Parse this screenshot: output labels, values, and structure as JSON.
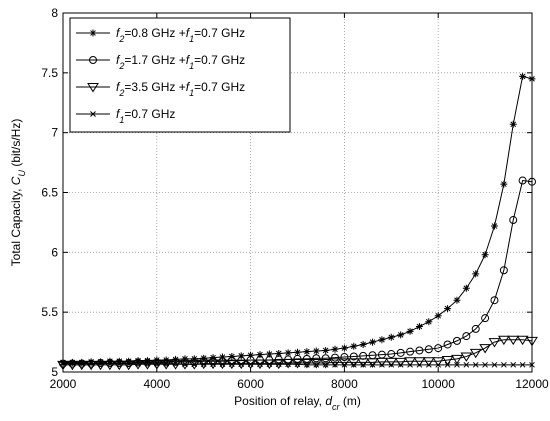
{
  "chart_data": {
    "type": "line",
    "xlabel": "Position of relay, dcr (m)",
    "ylabel": "Total Capacity, CU (bit/s/Hz)",
    "x": [
      2000,
      2200,
      2400,
      2600,
      2800,
      3000,
      3200,
      3400,
      3600,
      3800,
      4000,
      4200,
      4400,
      4600,
      4800,
      5000,
      5200,
      5400,
      5600,
      5800,
      6000,
      6200,
      6400,
      6600,
      6800,
      7000,
      7200,
      7400,
      7600,
      7800,
      8000,
      8200,
      8400,
      8600,
      8800,
      9000,
      9200,
      9400,
      9600,
      9800,
      10000,
      10200,
      10400,
      10600,
      10800,
      11000,
      11200,
      11400,
      11600,
      11800,
      12000
    ],
    "series": [
      {
        "name": "f2=0.8 GHz +f1=0.7 GHz",
        "color": "#000000",
        "marker": "asterisk",
        "values": [
          5.08,
          5.08,
          5.08,
          5.085,
          5.085,
          5.09,
          5.09,
          5.09,
          5.095,
          5.095,
          5.1,
          5.1,
          5.105,
          5.11,
          5.11,
          5.115,
          5.12,
          5.125,
          5.13,
          5.135,
          5.14,
          5.145,
          5.15,
          5.155,
          5.16,
          5.165,
          5.17,
          5.175,
          5.18,
          5.19,
          5.2,
          5.215,
          5.23,
          5.25,
          5.27,
          5.29,
          5.31,
          5.34,
          5.38,
          5.42,
          5.47,
          5.53,
          5.6,
          5.7,
          5.82,
          5.98,
          6.22,
          6.57,
          7.07,
          7.47,
          7.45
        ]
      },
      {
        "name": "f2=1.7 GHz +f1=0.7 GHz",
        "color": "#000000",
        "marker": "circle",
        "values": [
          5.07,
          5.07,
          5.07,
          5.07,
          5.075,
          5.075,
          5.075,
          5.075,
          5.08,
          5.08,
          5.08,
          5.08,
          5.085,
          5.085,
          5.085,
          5.09,
          5.09,
          5.09,
          5.095,
          5.095,
          5.1,
          5.1,
          5.1,
          5.105,
          5.105,
          5.11,
          5.11,
          5.115,
          5.115,
          5.12,
          5.125,
          5.13,
          5.135,
          5.14,
          5.145,
          5.15,
          5.16,
          5.17,
          5.18,
          5.19,
          5.2,
          5.23,
          5.26,
          5.3,
          5.36,
          5.45,
          5.6,
          5.85,
          6.27,
          6.6,
          6.59
        ]
      },
      {
        "name": "f2=3.5 GHz +f1=0.7 GHz",
        "color": "#000000",
        "marker": "triangle-down",
        "values": [
          5.06,
          5.06,
          5.06,
          5.06,
          5.06,
          5.06,
          5.06,
          5.06,
          5.065,
          5.065,
          5.065,
          5.065,
          5.065,
          5.065,
          5.065,
          5.07,
          5.07,
          5.07,
          5.07,
          5.07,
          5.07,
          5.07,
          5.07,
          5.07,
          5.075,
          5.075,
          5.075,
          5.075,
          5.075,
          5.08,
          5.08,
          5.08,
          5.08,
          5.08,
          5.085,
          5.085,
          5.085,
          5.09,
          5.09,
          5.09,
          5.09,
          5.1,
          5.11,
          5.13,
          5.16,
          5.2,
          5.25,
          5.27,
          5.27,
          5.27,
          5.26
        ]
      },
      {
        "name": "f1=0.7 GHz",
        "color": "#000000",
        "marker": "x",
        "values": [
          5.07,
          5.07,
          5.07,
          5.07,
          5.07,
          5.07,
          5.07,
          5.07,
          5.07,
          5.07,
          5.07,
          5.07,
          5.07,
          5.065,
          5.065,
          5.065,
          5.065,
          5.065,
          5.065,
          5.065,
          5.065,
          5.065,
          5.065,
          5.065,
          5.065,
          5.065,
          5.06,
          5.06,
          5.06,
          5.06,
          5.06,
          5.06,
          5.06,
          5.06,
          5.06,
          5.06,
          5.06,
          5.06,
          5.06,
          5.06,
          5.06,
          5.06,
          5.06,
          5.06,
          5.06,
          5.06,
          5.06,
          5.06,
          5.06,
          5.06,
          5.06
        ]
      }
    ],
    "xlim": [
      2000,
      12000
    ],
    "xticks": [
      2000,
      4000,
      6000,
      8000,
      10000,
      12000
    ],
    "ylim": [
      5,
      8
    ],
    "yticks": [
      5,
      5.5,
      6,
      6.5,
      7,
      7.5,
      8
    ],
    "grid": true,
    "legend": "upper left"
  }
}
